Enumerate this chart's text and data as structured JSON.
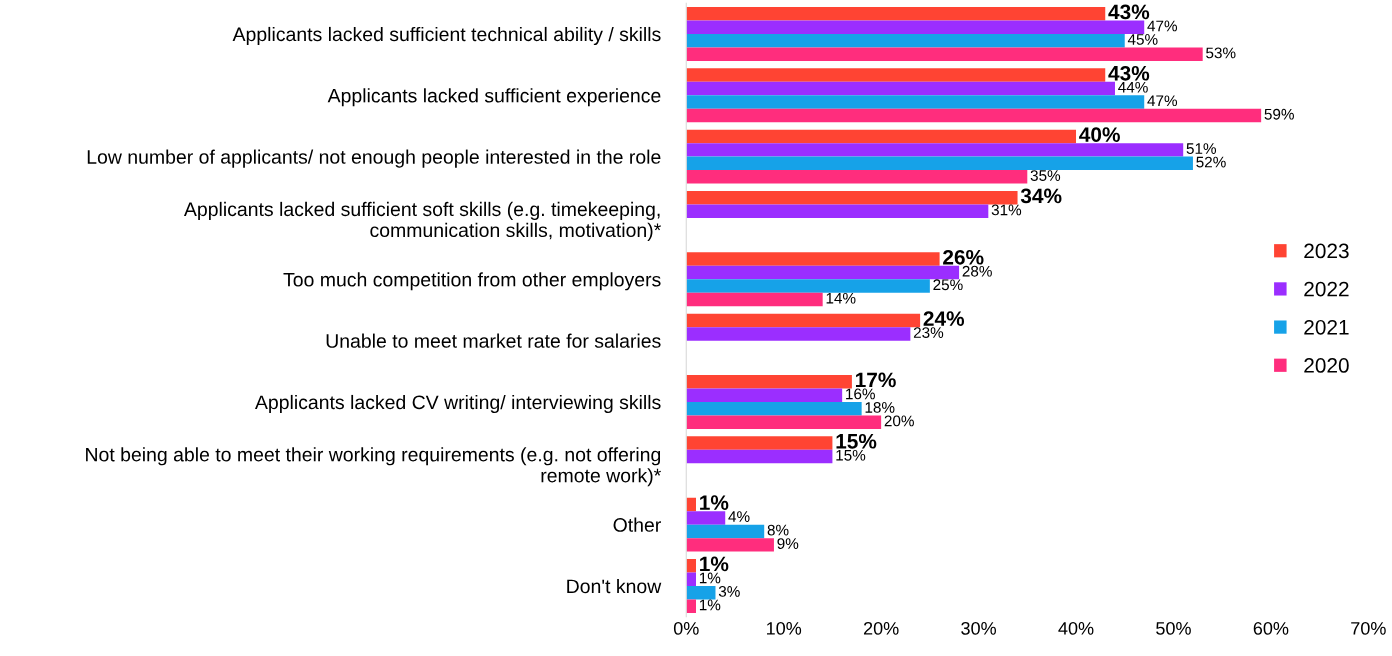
{
  "chart_data": {
    "type": "bar",
    "orientation": "horizontal",
    "categories": [
      "Applicants lacked sufficient technical ability / skills",
      "Applicants lacked sufficient experience",
      "Low number of applicants/ not enough people interested in the role",
      "Applicants lacked sufficient soft skills (e.g. timekeeping,\ncommunication skills, motivation)*",
      "Too much competition from other employers",
      "Unable to meet market rate for salaries",
      "Applicants lacked CV writing/ interviewing skills",
      "Not being able to meet their working requirements (e.g. not offering\nremote work)*",
      "Other",
      "Don't know"
    ],
    "series": [
      {
        "name": "2023",
        "color": "#ff4433",
        "values": [
          43,
          43,
          40,
          34,
          26,
          24,
          17,
          15,
          1,
          1
        ],
        "value_labels": [
          "43%",
          "43%",
          "40%",
          "34%",
          "26%",
          "24%",
          "17%",
          "15%",
          "1%",
          "1%"
        ]
      },
      {
        "name": "2022",
        "color": "#9b2eff",
        "values": [
          47,
          44,
          51,
          31,
          28,
          23,
          16,
          15,
          4,
          1
        ],
        "value_labels": [
          "47%",
          "44%",
          "51%",
          "31%",
          "28%",
          "23%",
          "16%",
          "15%",
          "4%",
          "1%"
        ]
      },
      {
        "name": "2021",
        "color": "#16a2e8",
        "values": [
          45,
          47,
          52,
          null,
          25,
          null,
          18,
          null,
          8,
          3
        ],
        "value_labels": [
          "45%",
          "47%",
          "52%",
          null,
          "25%",
          null,
          "18%",
          null,
          "8%",
          "3%"
        ]
      },
      {
        "name": "2020",
        "color": "#ff2d7d",
        "values": [
          53,
          59,
          35,
          null,
          14,
          null,
          20,
          null,
          9,
          1
        ],
        "value_labels": [
          "53%",
          "59%",
          "35%",
          null,
          "14%",
          null,
          "20%",
          null,
          "9%",
          "1%"
        ]
      }
    ],
    "xlim": [
      0,
      70
    ],
    "xticks": [
      {
        "value": 0,
        "label": "0%"
      },
      {
        "value": 10,
        "label": "10%"
      },
      {
        "value": 20,
        "label": "20%"
      },
      {
        "value": 30,
        "label": "30%"
      },
      {
        "value": 40,
        "label": "40%"
      },
      {
        "value": 50,
        "label": "50%"
      },
      {
        "value": 60,
        "label": "60%"
      },
      {
        "value": 70,
        "label": "70%"
      }
    ],
    "legend": "right",
    "grid": false
  }
}
